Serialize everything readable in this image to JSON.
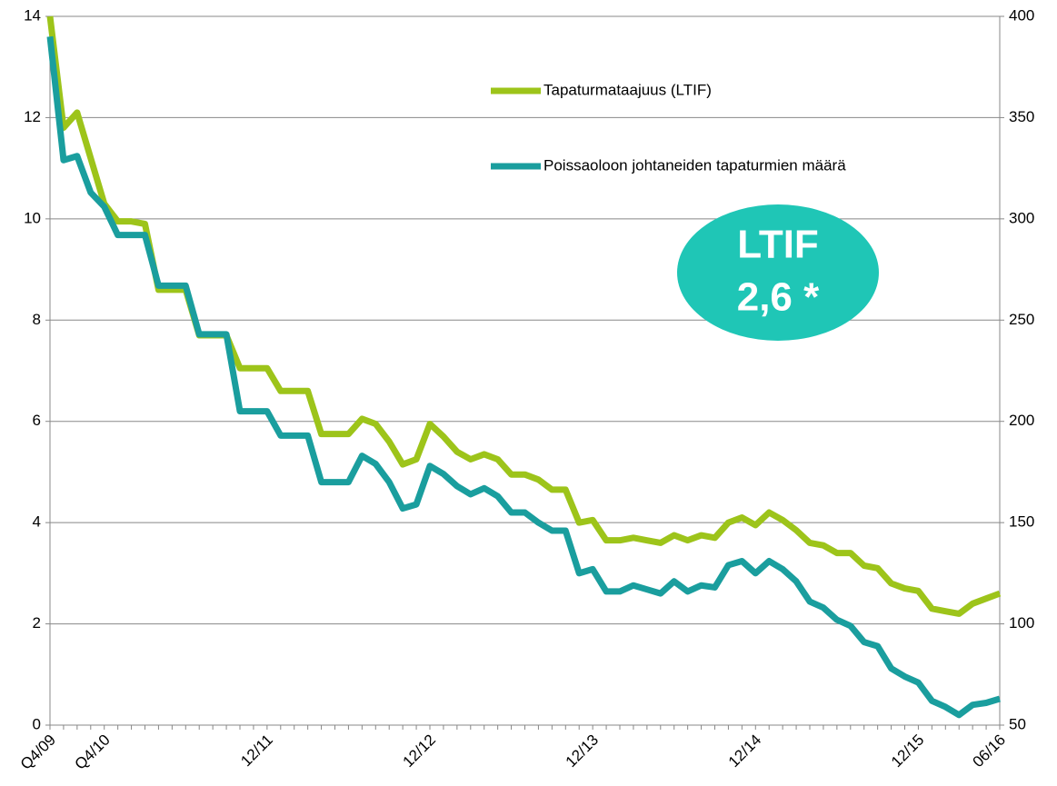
{
  "chart_data": {
    "type": "line",
    "categories": [
      "Q4/09",
      null,
      null,
      null,
      "Q4/10",
      null,
      null,
      null,
      null,
      null,
      null,
      null,
      null,
      null,
      null,
      null,
      "12/11",
      null,
      null,
      null,
      null,
      null,
      null,
      null,
      null,
      null,
      null,
      null,
      "12/12",
      null,
      null,
      null,
      null,
      null,
      null,
      null,
      null,
      null,
      null,
      null,
      "12/13",
      null,
      null,
      null,
      null,
      null,
      null,
      null,
      null,
      null,
      null,
      null,
      "12/14",
      null,
      null,
      null,
      null,
      null,
      null,
      null,
      null,
      null,
      null,
      null,
      "12/15",
      null,
      null,
      null,
      null,
      null,
      "06/16"
    ],
    "series": [
      {
        "name": "Tapaturmataajuus (LTIF)",
        "color": "#9dc41a",
        "axis": "y",
        "values": [
          14.0,
          11.8,
          12.1,
          11.2,
          10.3,
          9.95,
          9.95,
          9.9,
          8.6,
          8.6,
          8.6,
          7.7,
          7.7,
          7.7,
          7.05,
          7.05,
          7.05,
          6.6,
          6.6,
          6.6,
          5.75,
          5.75,
          5.75,
          6.05,
          5.95,
          5.6,
          5.15,
          5.25,
          5.95,
          5.7,
          5.4,
          5.25,
          5.35,
          5.25,
          4.95,
          4.95,
          4.85,
          4.65,
          4.65,
          4.0,
          4.05,
          3.65,
          3.65,
          3.7,
          3.65,
          3.6,
          3.75,
          3.65,
          3.75,
          3.7,
          4.0,
          4.1,
          3.95,
          4.2,
          4.05,
          3.85,
          3.6,
          3.55,
          3.4,
          3.4,
          3.15,
          3.1,
          2.8,
          2.7,
          2.65,
          2.3,
          2.25,
          2.2,
          2.4,
          2.5,
          2.6
        ]
      },
      {
        "name": "Poissaoloon johtaneiden tapaturmien määrä",
        "color": "#1a9e9e",
        "axis": "y2",
        "values": [
          390,
          329,
          331,
          313,
          306,
          292,
          292,
          292,
          267,
          267,
          267,
          243,
          243,
          243,
          205,
          205,
          205,
          193,
          193,
          193,
          170,
          170,
          170,
          183,
          179,
          170,
          157,
          159,
          178,
          174,
          168,
          164,
          167,
          163,
          155,
          155,
          150,
          146,
          146,
          125,
          127,
          116,
          116,
          119,
          117,
          115,
          121,
          116,
          119,
          118,
          129,
          131,
          125,
          131,
          127,
          121,
          111,
          108,
          102,
          99,
          91,
          89,
          78,
          74,
          71,
          62,
          59,
          55,
          60,
          61,
          63
        ]
      }
    ],
    "ylim": [
      0,
      14
    ],
    "yticks": [
      0,
      2,
      4,
      6,
      8,
      10,
      12,
      14
    ],
    "y2lim": [
      50,
      400
    ],
    "y2ticks": [
      50,
      100,
      150,
      200,
      250,
      300,
      350,
      400
    ],
    "grid": true,
    "annotation": [
      "LTIF",
      "2,6 *"
    ],
    "annotation_color": "#1fc6b6"
  }
}
